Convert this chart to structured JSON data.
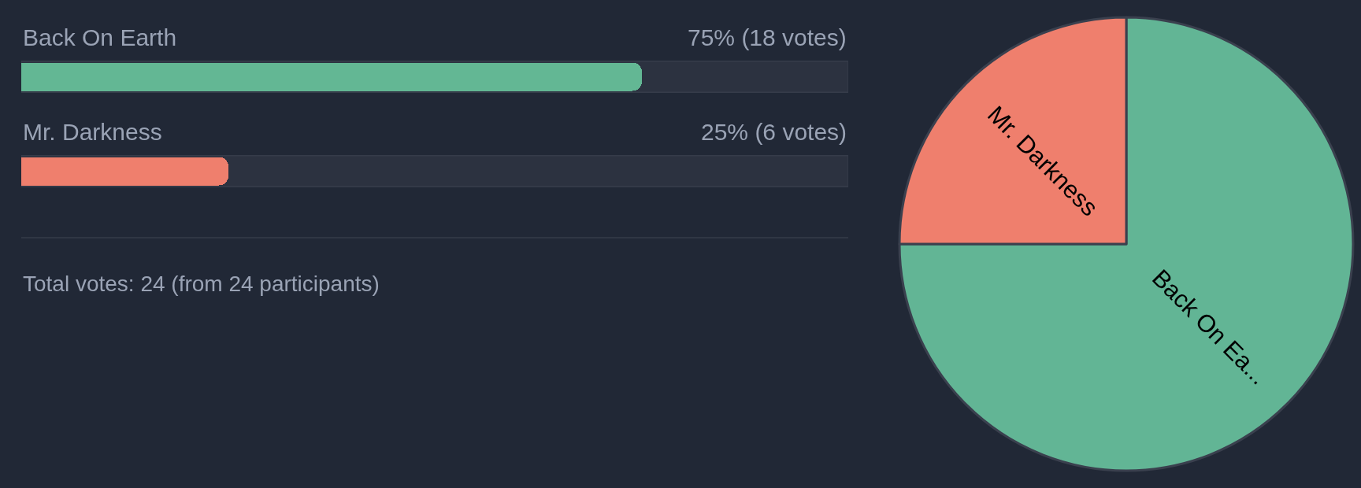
{
  "chart_data": [
    {
      "type": "bar",
      "orientation": "horizontal",
      "categories": [
        "Back On Earth",
        "Mr. Darkness"
      ],
      "values": [
        75,
        25
      ],
      "colors": [
        "#63b794",
        "#ef7f6d"
      ],
      "xlim": [
        0,
        100
      ],
      "value_labels": [
        "75% (18 votes)",
        "25% (6 votes)"
      ],
      "tick_labels": "y",
      "annotations": [
        "Total votes: 24 (from 24 participants)"
      ]
    },
    {
      "type": "pie",
      "categories": [
        "Back On Ea...",
        "Mr. Darkness"
      ],
      "values": [
        75,
        25
      ],
      "colors": [
        "#62b595",
        "#ef7f6d"
      ]
    }
  ]
}
